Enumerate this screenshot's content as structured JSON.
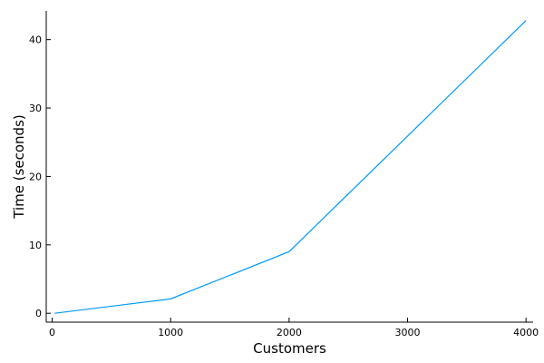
{
  "chart_data": {
    "type": "line",
    "title": "",
    "xlabel": "Customers",
    "ylabel": "Time (seconds)",
    "xlim": [
      -50,
      4060
    ],
    "ylim": [
      -1.3,
      44.2
    ],
    "x_ticks": [
      {
        "value": 0,
        "label": "0"
      },
      {
        "value": 1000,
        "label": "1000"
      },
      {
        "value": 2000,
        "label": "2000"
      },
      {
        "value": 3000,
        "label": "3000"
      },
      {
        "value": 4000,
        "label": "4000"
      }
    ],
    "y_ticks": [
      {
        "value": 0,
        "label": "0"
      },
      {
        "value": 10,
        "label": "10"
      },
      {
        "value": 20,
        "label": "20"
      },
      {
        "value": 30,
        "label": "30"
      },
      {
        "value": 40,
        "label": "40"
      }
    ],
    "grid": false,
    "legend": "none",
    "series": [
      {
        "color": "#009AFA",
        "x": [
          20,
          1000,
          2000,
          4000
        ],
        "y": [
          0.0,
          2.1,
          9.0,
          42.8
        ]
      }
    ]
  }
}
